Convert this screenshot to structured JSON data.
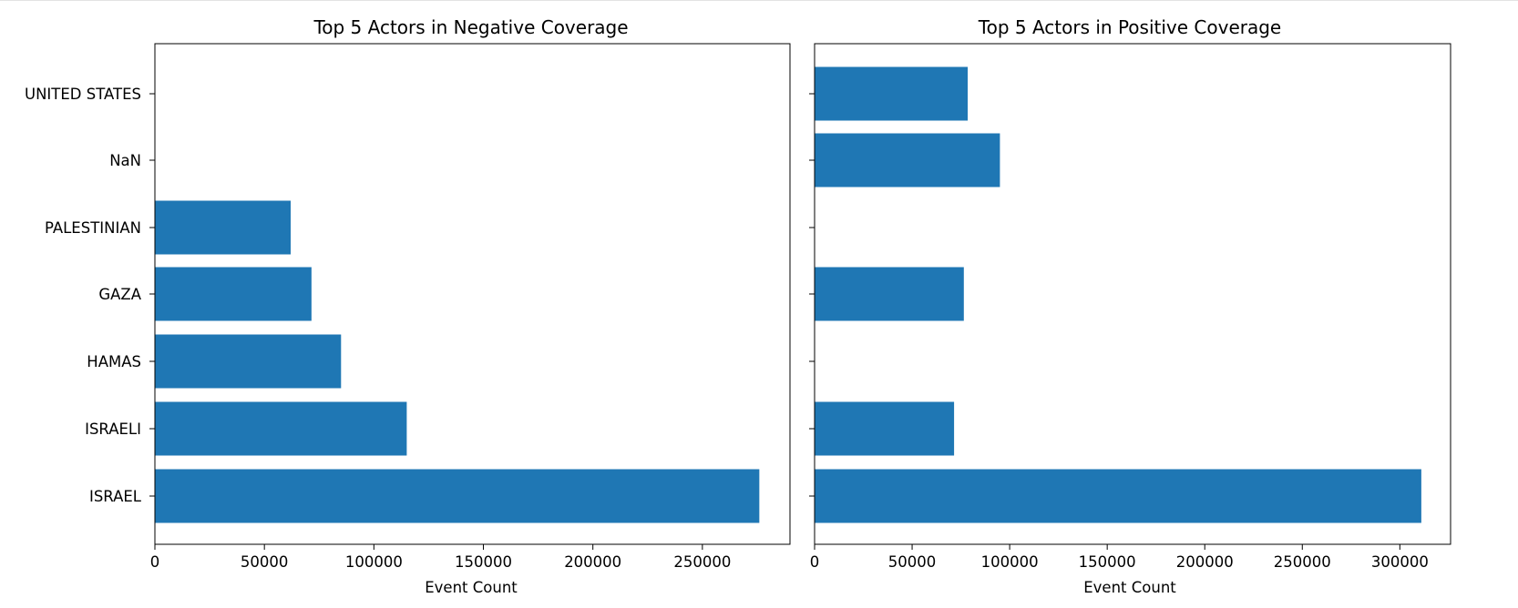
{
  "chart_data": [
    {
      "type": "bar",
      "orientation": "horizontal",
      "title": "Top 5 Actors in Negative Coverage",
      "xlabel": "Event Count",
      "ylabel": "",
      "categories": [
        "ISRAEL",
        "ISRAELI",
        "HAMAS",
        "GAZA",
        "PALESTINIAN",
        "NaN",
        "UNITED STATES"
      ],
      "values": [
        276000,
        115000,
        85000,
        71500,
        62000,
        null,
        null
      ],
      "xlim": [
        0,
        290000
      ],
      "xticks": [
        0,
        50000,
        100000,
        150000,
        200000,
        250000
      ],
      "xtick_labels": [
        "0",
        "50000",
        "100000",
        "150000",
        "200000",
        "250000"
      ],
      "show_y_tick_labels": true,
      "grid": false,
      "bar_color": "#1f77b4"
    },
    {
      "type": "bar",
      "orientation": "horizontal",
      "title": "Top 5 Actors in Positive Coverage",
      "xlabel": "Event Count",
      "ylabel": "",
      "categories": [
        "ISRAEL",
        "ISRAELI",
        "HAMAS",
        "GAZA",
        "PALESTINIAN",
        "NaN",
        "UNITED STATES"
      ],
      "values": [
        311000,
        71500,
        null,
        76500,
        null,
        95000,
        78500
      ],
      "xlim": [
        0,
        326000
      ],
      "xticks": [
        0,
        50000,
        100000,
        150000,
        200000,
        250000,
        300000
      ],
      "xtick_labels": [
        "0",
        "50000",
        "100000",
        "150000",
        "200000",
        "250000",
        "300000"
      ],
      "show_y_tick_labels": false,
      "grid": false,
      "bar_color": "#1f77b4"
    }
  ]
}
